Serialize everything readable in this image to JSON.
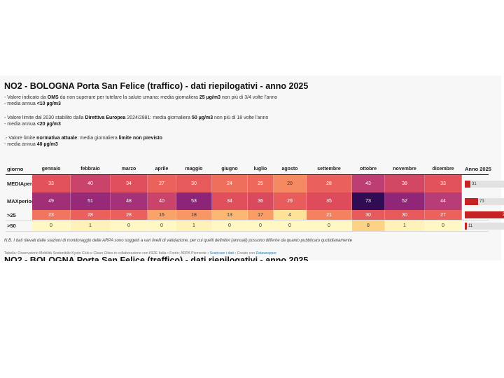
{
  "title": "NO2 - BOLOGNA Porta San Felice (traffico) - dati riepilogativi - anno 2025",
  "description": {
    "oms": {
      "l1a": "- Valore indicato da ",
      "l1b": "OMS",
      "l1c": " da non superare per tutelare la salute umana: media giornaliera ",
      "l1d": "25 µg/m3",
      "l1e": " non più di 3/4 volte l'anno",
      "l2a": "- media annua ",
      "l2b": "<10 µg/m3"
    },
    "eu": {
      "l1a": "- Valore limite dal 2030 stabilito dalla ",
      "l1b": "Direttiva Europea",
      "l1c": " 2024/2881: media giornaliera ",
      "l1d": "50 µg/m3",
      "l1e": " non più di 18 volte l'anno",
      "l2a": "- media annua ",
      "l2b": "<20 µg/m3"
    },
    "current": {
      "l1a": ".- Valore limite ",
      "l1b": "normativa attuale",
      "l1c": ": media giornaliera ",
      "l1d": "limite non previsto",
      "l2a": "- media annua ",
      "l2b": "40 µg/m3"
    }
  },
  "chart_data": {
    "type": "table",
    "header_first": "giorno",
    "annual_header": "Anno 2025",
    "categories": [
      "gennaio",
      "febbraio",
      "marzo",
      "aprile",
      "maggio",
      "giugno",
      "luglio",
      "agosto",
      "settembre",
      "ottobre",
      "novembre",
      "dicembre"
    ],
    "rows": [
      {
        "label_1": "MEDIA",
        "label_2": "periodo",
        "values": [
          33,
          40,
          34,
          27,
          30,
          24,
          25,
          20,
          28,
          43,
          38,
          33
        ],
        "annual": 31
      },
      {
        "label_1": "MAX",
        "label_2": "periodo",
        "values": [
          49,
          51,
          48,
          40,
          53,
          34,
          36,
          29,
          35,
          73,
          52,
          44
        ],
        "annual": 73
      },
      {
        "label_1": ">25",
        "label_2": "",
        "values": [
          23,
          28,
          28,
          16,
          18,
          13,
          17,
          4,
          21,
          30,
          30,
          27
        ],
        "annual": 255
      },
      {
        "label_1": ">50",
        "label_2": "",
        "values": [
          0,
          1,
          0,
          0,
          1,
          0,
          0,
          0,
          0,
          8,
          1,
          0
        ],
        "annual": 11
      }
    ],
    "bar_max": 255
  },
  "colors": {
    "bar": "#c62424",
    "track": "#e2e2e2"
  },
  "note": "N.B. I dati rilevati dalle stazioni di monitoraggio delle ARPA sono soggetti a vari livelli di validazione, per cui quelli definitivi (annuali) possono differire da quanto pubblicato quotidianamente",
  "footer": {
    "a": "Tabella: Osservatorio Mobilità Sostenibile Kyoto Club e Clean Cities in collaborazione con ISDE Italia • Fonte: ARPA Piemonte • ",
    "link1": "Scaricare i dati",
    "b": " • Creato con ",
    "link2": "Datawrapper"
  }
}
